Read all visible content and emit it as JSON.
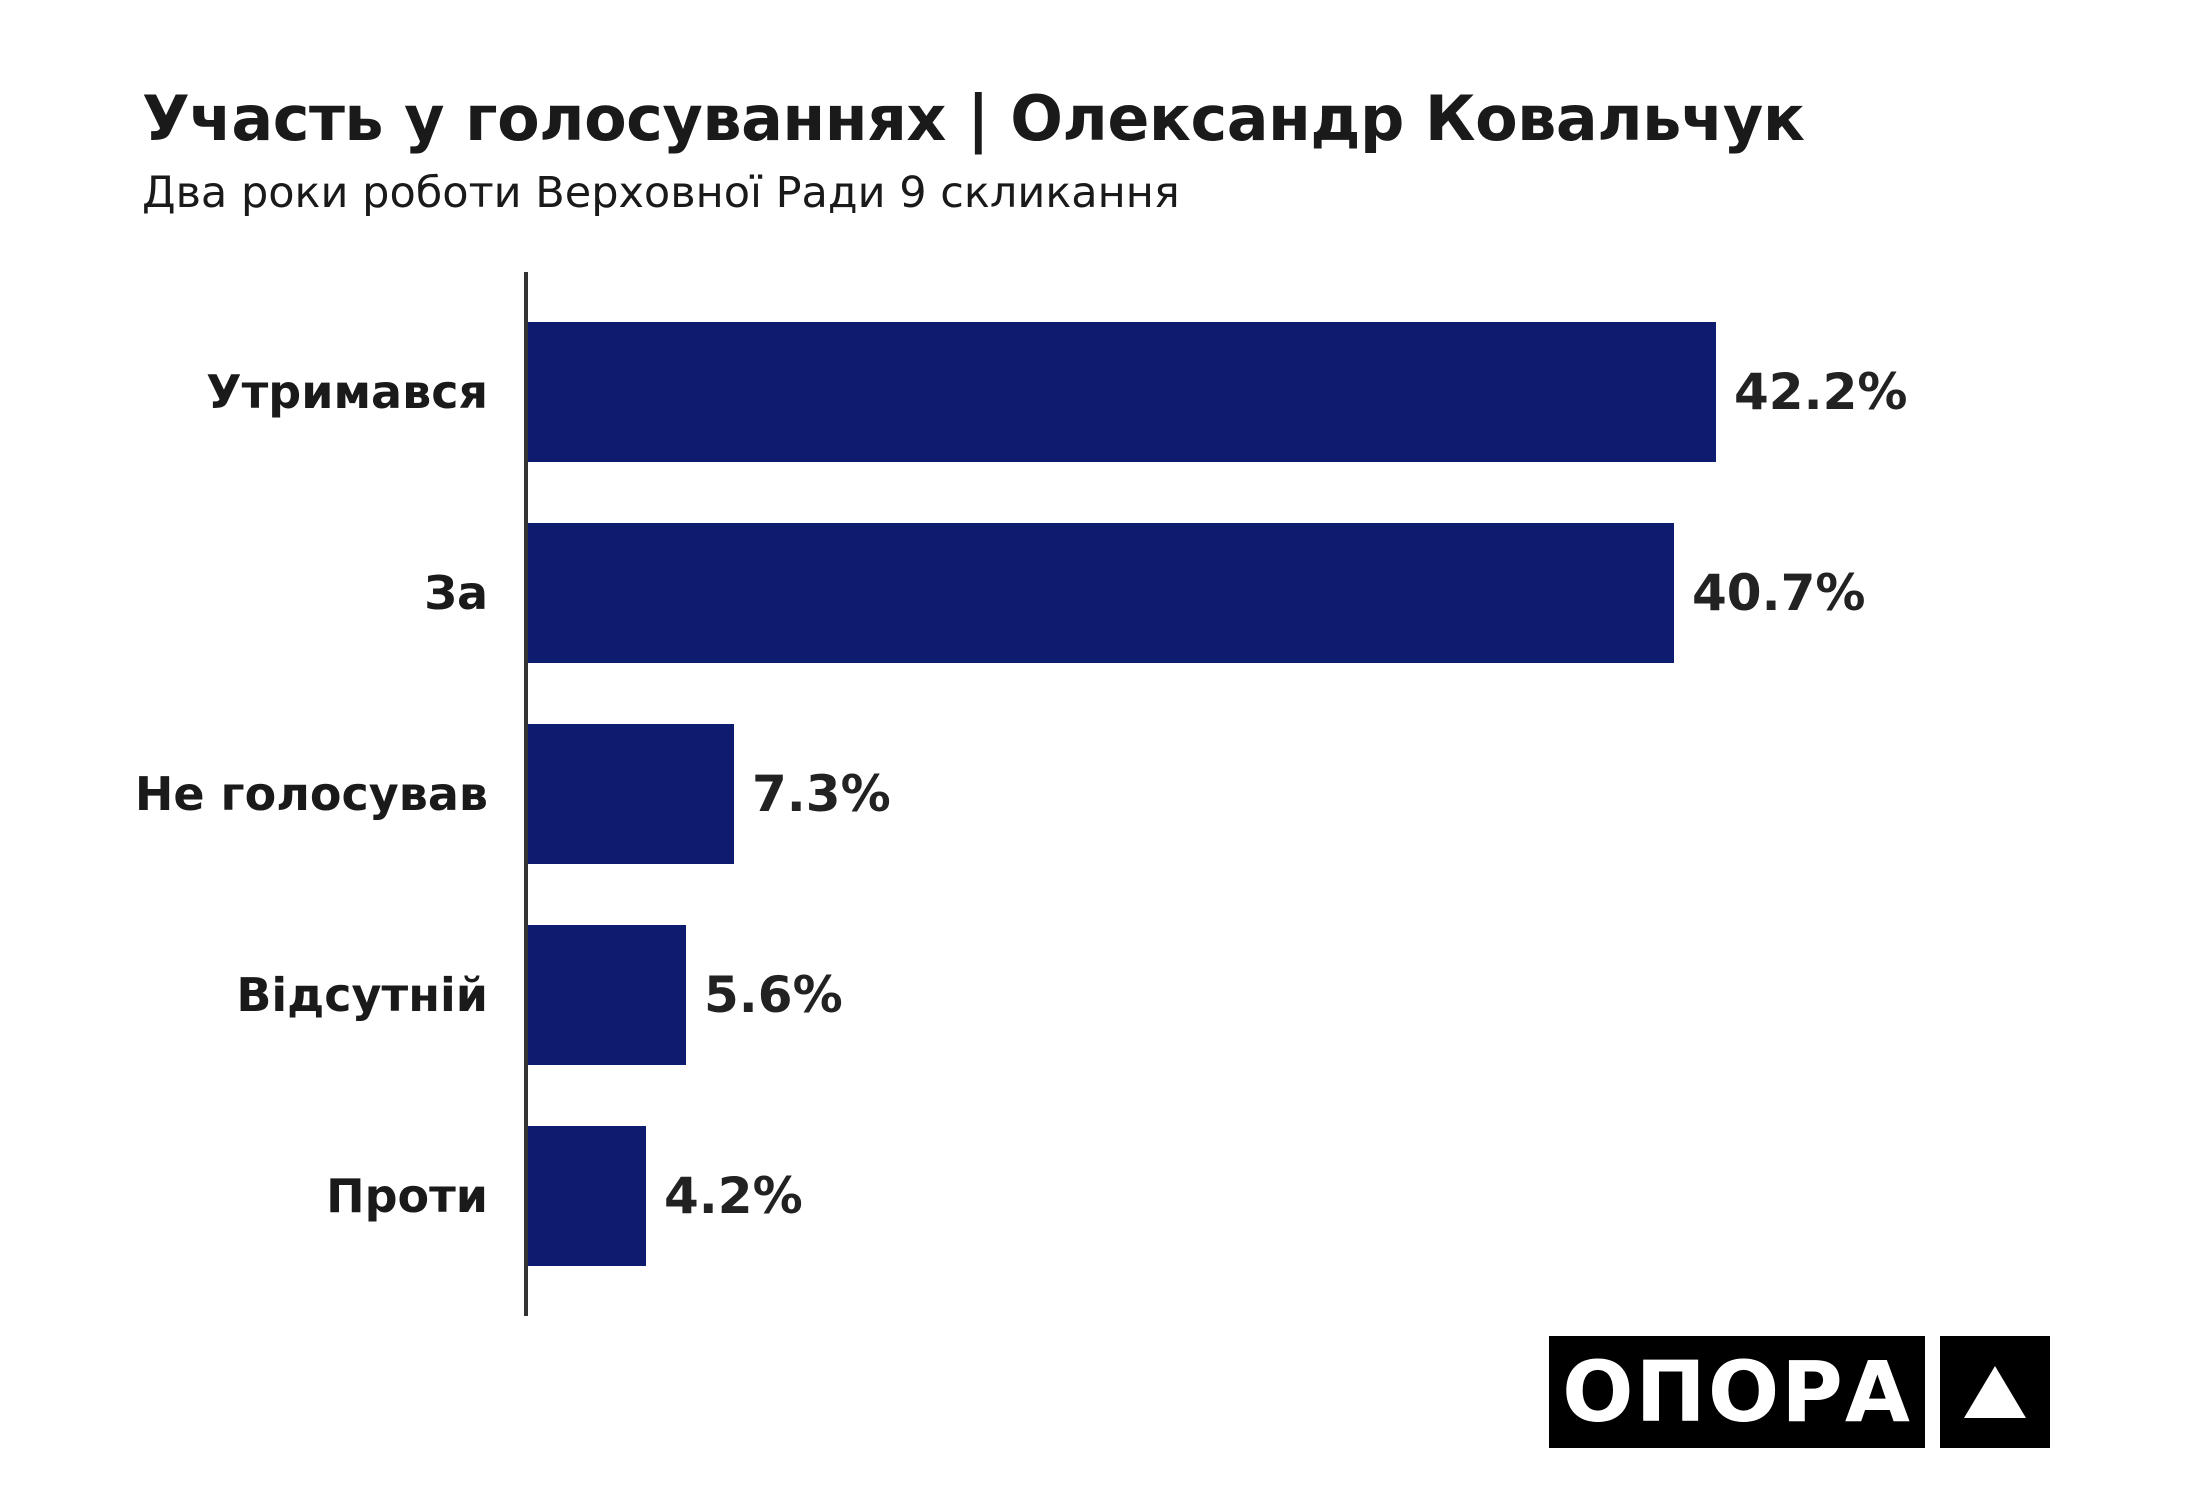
{
  "header": {
    "title": "Участь у голосуваннях | Олександр Ковальчук",
    "subtitle": "Два роки роботи Верховної Ради 9 скликання"
  },
  "logo": {
    "text": "ОПОРА",
    "icon": "triangle-icon"
  },
  "colors": {
    "bar": "#0e1c70",
    "axis": "#333333",
    "text": "#1a1a1a"
  },
  "chart_data": {
    "type": "bar",
    "orientation": "horizontal",
    "categories": [
      "Утримався",
      "За",
      "Не голосував",
      "Відсутній",
      "Проти"
    ],
    "values": [
      42.2,
      40.7,
      7.3,
      5.6,
      4.2
    ],
    "value_labels": [
      "42.2%",
      "40.7%",
      "7.3%",
      "5.6%",
      "4.2%"
    ],
    "unit": "%",
    "xlim": [
      0,
      42.2
    ],
    "grid": false,
    "legend": "none"
  }
}
